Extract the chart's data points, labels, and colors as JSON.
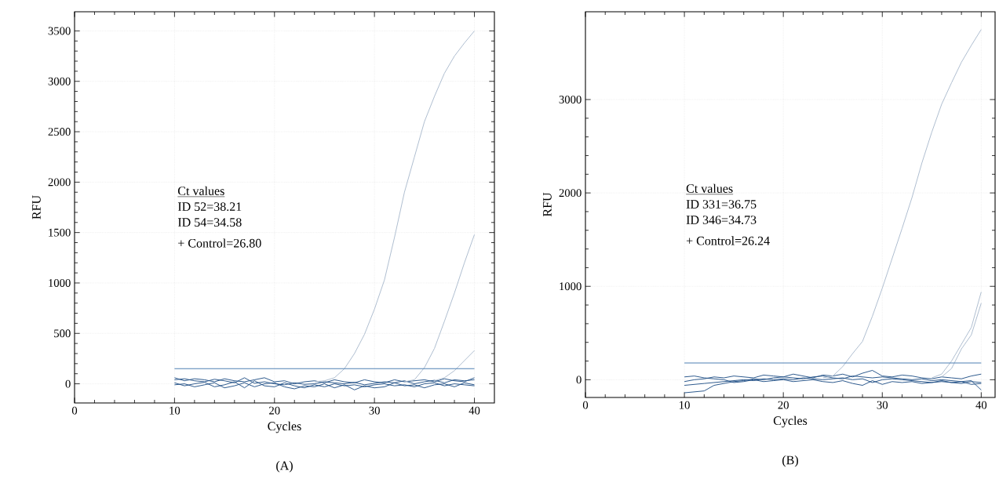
{
  "chart_data": [
    {
      "type": "line",
      "xlabel": "Cycles",
      "ylabel": "RFU",
      "xlim": [
        0,
        42
      ],
      "ylim": [
        -190,
        3690
      ],
      "xticks": [
        0,
        10,
        20,
        30,
        40
      ],
      "yticks": [
        0,
        500,
        1000,
        1500,
        2000,
        2500,
        3000,
        3500
      ],
      "grid": true,
      "marker": "none",
      "line_style": "solid",
      "ref_lines": [
        {
          "axis": "y",
          "value": 150,
          "color": "#4f80b3"
        }
      ],
      "annotations": [
        "Ct values",
        "ID 52=38.21",
        "ID 54=34.58",
        "+ Control=26.80",
        "(A)"
      ],
      "series": [
        {
          "color": "#1f4f85",
          "x": [
            10,
            11,
            12,
            13,
            14,
            15,
            16,
            17,
            18,
            19,
            20,
            21,
            22,
            23,
            24,
            25,
            26,
            27,
            28,
            29,
            30,
            31,
            32,
            33,
            34,
            35,
            36,
            37,
            38,
            39,
            40
          ],
          "values": [
            40,
            50,
            30,
            20,
            45,
            30,
            10,
            60,
            5,
            20,
            0,
            -10,
            10,
            -5,
            0,
            20,
            10,
            0,
            15,
            -10,
            5,
            20,
            10,
            30,
            0,
            20,
            35,
            10,
            40,
            30,
            40
          ]
        },
        {
          "color": "#1f4f85",
          "x": [
            10,
            11,
            12,
            13,
            14,
            15,
            16,
            17,
            18,
            19,
            20,
            21,
            22,
            23,
            24,
            25,
            26,
            27,
            28,
            29,
            30,
            31,
            32,
            33,
            34,
            35,
            36,
            37,
            38,
            39,
            40
          ],
          "values": [
            10,
            -20,
            0,
            15,
            -30,
            -10,
            20,
            -40,
            30,
            -20,
            -30,
            10,
            -20,
            -40,
            -10,
            -30,
            0,
            -20,
            -10,
            -30,
            -10,
            0,
            -20,
            -10,
            -30,
            0,
            10,
            -20,
            0,
            -10,
            -20
          ]
        },
        {
          "color": "#1f4f85",
          "x": [
            10,
            11,
            12,
            13,
            14,
            15,
            16,
            17,
            18,
            19,
            20,
            21,
            22,
            23,
            24,
            25,
            26,
            27,
            28,
            29,
            30,
            31,
            32,
            33,
            34,
            35,
            36,
            37,
            38,
            39,
            40
          ],
          "values": [
            60,
            30,
            50,
            40,
            20,
            50,
            30,
            20,
            40,
            60,
            20,
            30,
            0,
            20,
            30,
            10,
            40,
            20,
            10,
            40,
            20,
            10,
            40,
            20,
            30,
            40,
            20,
            50,
            30,
            20,
            60
          ]
        },
        {
          "color": "#1f4f85",
          "x": [
            10,
            11,
            12,
            13,
            14,
            15,
            16,
            17,
            18,
            19,
            20,
            21,
            22,
            23,
            24,
            25,
            26,
            27,
            28,
            29,
            30,
            31,
            32,
            33,
            34,
            35,
            36,
            37,
            38,
            39,
            40
          ],
          "values": [
            -10,
            0,
            -30,
            -10,
            10,
            -40,
            -20,
            10,
            -30,
            0,
            10,
            -30,
            -50,
            -20,
            -30,
            0,
            -40,
            -10,
            -60,
            -20,
            -40,
            -30,
            10,
            -20,
            -10,
            -40,
            -10,
            0,
            -30,
            10,
            -10
          ]
        },
        {
          "color": "#a9b9cc",
          "x": [
            24,
            25,
            26,
            27,
            28,
            29,
            30,
            31,
            32,
            33,
            34,
            35,
            36,
            37,
            38,
            39,
            40
          ],
          "values": [
            20,
            30,
            60,
            150,
            300,
            490,
            740,
            1030,
            1450,
            1900,
            2250,
            2600,
            2850,
            3080,
            3250,
            3380,
            3500
          ]
        },
        {
          "color": "#a9b9cc",
          "x": [
            33,
            34,
            35,
            36,
            37,
            38,
            39,
            40
          ],
          "values": [
            20,
            40,
            160,
            350,
            620,
            900,
            1200,
            1480
          ]
        },
        {
          "color": "#a9b9cc",
          "x": [
            36,
            37,
            38,
            39,
            40
          ],
          "values": [
            30,
            60,
            130,
            230,
            330
          ]
        }
      ]
    },
    {
      "type": "line",
      "xlabel": "Cycles",
      "ylabel": "RFU",
      "xlim": [
        0,
        41.4
      ],
      "ylim": [
        -190,
        3940
      ],
      "xticks": [
        0,
        10,
        20,
        30,
        40
      ],
      "yticks": [
        0,
        1000,
        2000,
        3000
      ],
      "grid": true,
      "marker": "none",
      "line_style": "solid",
      "ref_lines": [
        {
          "axis": "y",
          "value": 180,
          "color": "#4f80b3"
        }
      ],
      "annotations": [
        "Ct values",
        "ID 331=36.75",
        "ID 346=34.73",
        "+ Control=26.24",
        "(B)"
      ],
      "series": [
        {
          "color": "#1f4f85",
          "x": [
            10,
            11,
            12,
            13,
            14,
            15,
            16,
            17,
            18,
            19,
            20,
            21,
            22,
            23,
            24,
            25,
            26,
            27,
            28,
            29,
            30,
            31,
            32,
            33,
            34,
            35,
            36,
            37,
            38,
            39,
            40
          ],
          "values": [
            -20,
            0,
            10,
            30,
            20,
            40,
            30,
            20,
            50,
            40,
            30,
            60,
            40,
            20,
            50,
            40,
            60,
            30,
            70,
            100,
            40,
            30,
            50,
            40,
            20,
            10,
            30,
            20,
            10,
            40,
            60
          ]
        },
        {
          "color": "#1f4f85",
          "x": [
            10,
            11,
            12,
            13,
            14,
            15,
            16,
            17,
            18,
            19,
            20,
            21,
            22,
            23,
            24,
            25,
            26,
            27,
            28,
            29,
            30,
            31,
            32,
            33,
            34,
            35,
            36,
            37,
            38,
            39,
            40
          ],
          "values": [
            -60,
            -50,
            -40,
            -30,
            -20,
            -10,
            0,
            -10,
            10,
            0,
            10,
            0,
            20,
            10,
            0,
            10,
            20,
            0,
            10,
            -30,
            0,
            10,
            0,
            -10,
            -20,
            -30,
            -20,
            -30,
            -40,
            -20,
            -30
          ]
        },
        {
          "color": "#1f4f85",
          "x": [
            10,
            11,
            12,
            13,
            14,
            15,
            16,
            17,
            18,
            19,
            20,
            21,
            22,
            23,
            24,
            25,
            26,
            27,
            28,
            29,
            30,
            31,
            32,
            33,
            34,
            35,
            36,
            37,
            38,
            39,
            40
          ],
          "values": [
            -140,
            -130,
            -120,
            -60,
            -40,
            -20,
            -10,
            10,
            0,
            20,
            30,
            20,
            10,
            30,
            40,
            20,
            10,
            40,
            30,
            20,
            30,
            20,
            10,
            0,
            10,
            -10,
            0,
            -10,
            -20,
            -10,
            -110
          ]
        },
        {
          "color": "#1f4f85",
          "x": [
            10,
            11,
            12,
            13,
            14,
            15,
            16,
            17,
            18,
            19,
            20,
            21,
            22,
            23,
            24,
            25,
            26,
            27,
            28,
            29,
            30,
            31,
            32,
            33,
            34,
            35,
            36,
            37,
            38,
            39,
            40
          ],
          "values": [
            30,
            40,
            20,
            10,
            0,
            -30,
            -20,
            0,
            -20,
            -10,
            0,
            -20,
            -10,
            0,
            -20,
            -30,
            -10,
            -40,
            -60,
            -10,
            -50,
            -20,
            -30,
            -20,
            -40,
            -30,
            -10,
            -30,
            -20,
            -50,
            -40
          ]
        },
        {
          "color": "#a9b9cc",
          "x": [
            24,
            25,
            26,
            27,
            28,
            29,
            30,
            31,
            32,
            33,
            34,
            35,
            36,
            37,
            38,
            39,
            40
          ],
          "values": [
            20,
            40,
            140,
            280,
            410,
            680,
            980,
            1300,
            1620,
            1950,
            2320,
            2650,
            2950,
            3180,
            3400,
            3580,
            3750
          ]
        },
        {
          "color": "#a9b9cc",
          "x": [
            35,
            36,
            37,
            38,
            39,
            40
          ],
          "values": [
            20,
            60,
            200,
            380,
            560,
            940
          ]
        },
        {
          "color": "#a9b9cc",
          "x": [
            36,
            37,
            38,
            39,
            40
          ],
          "values": [
            30,
            120,
            330,
            480,
            820
          ]
        }
      ]
    }
  ]
}
